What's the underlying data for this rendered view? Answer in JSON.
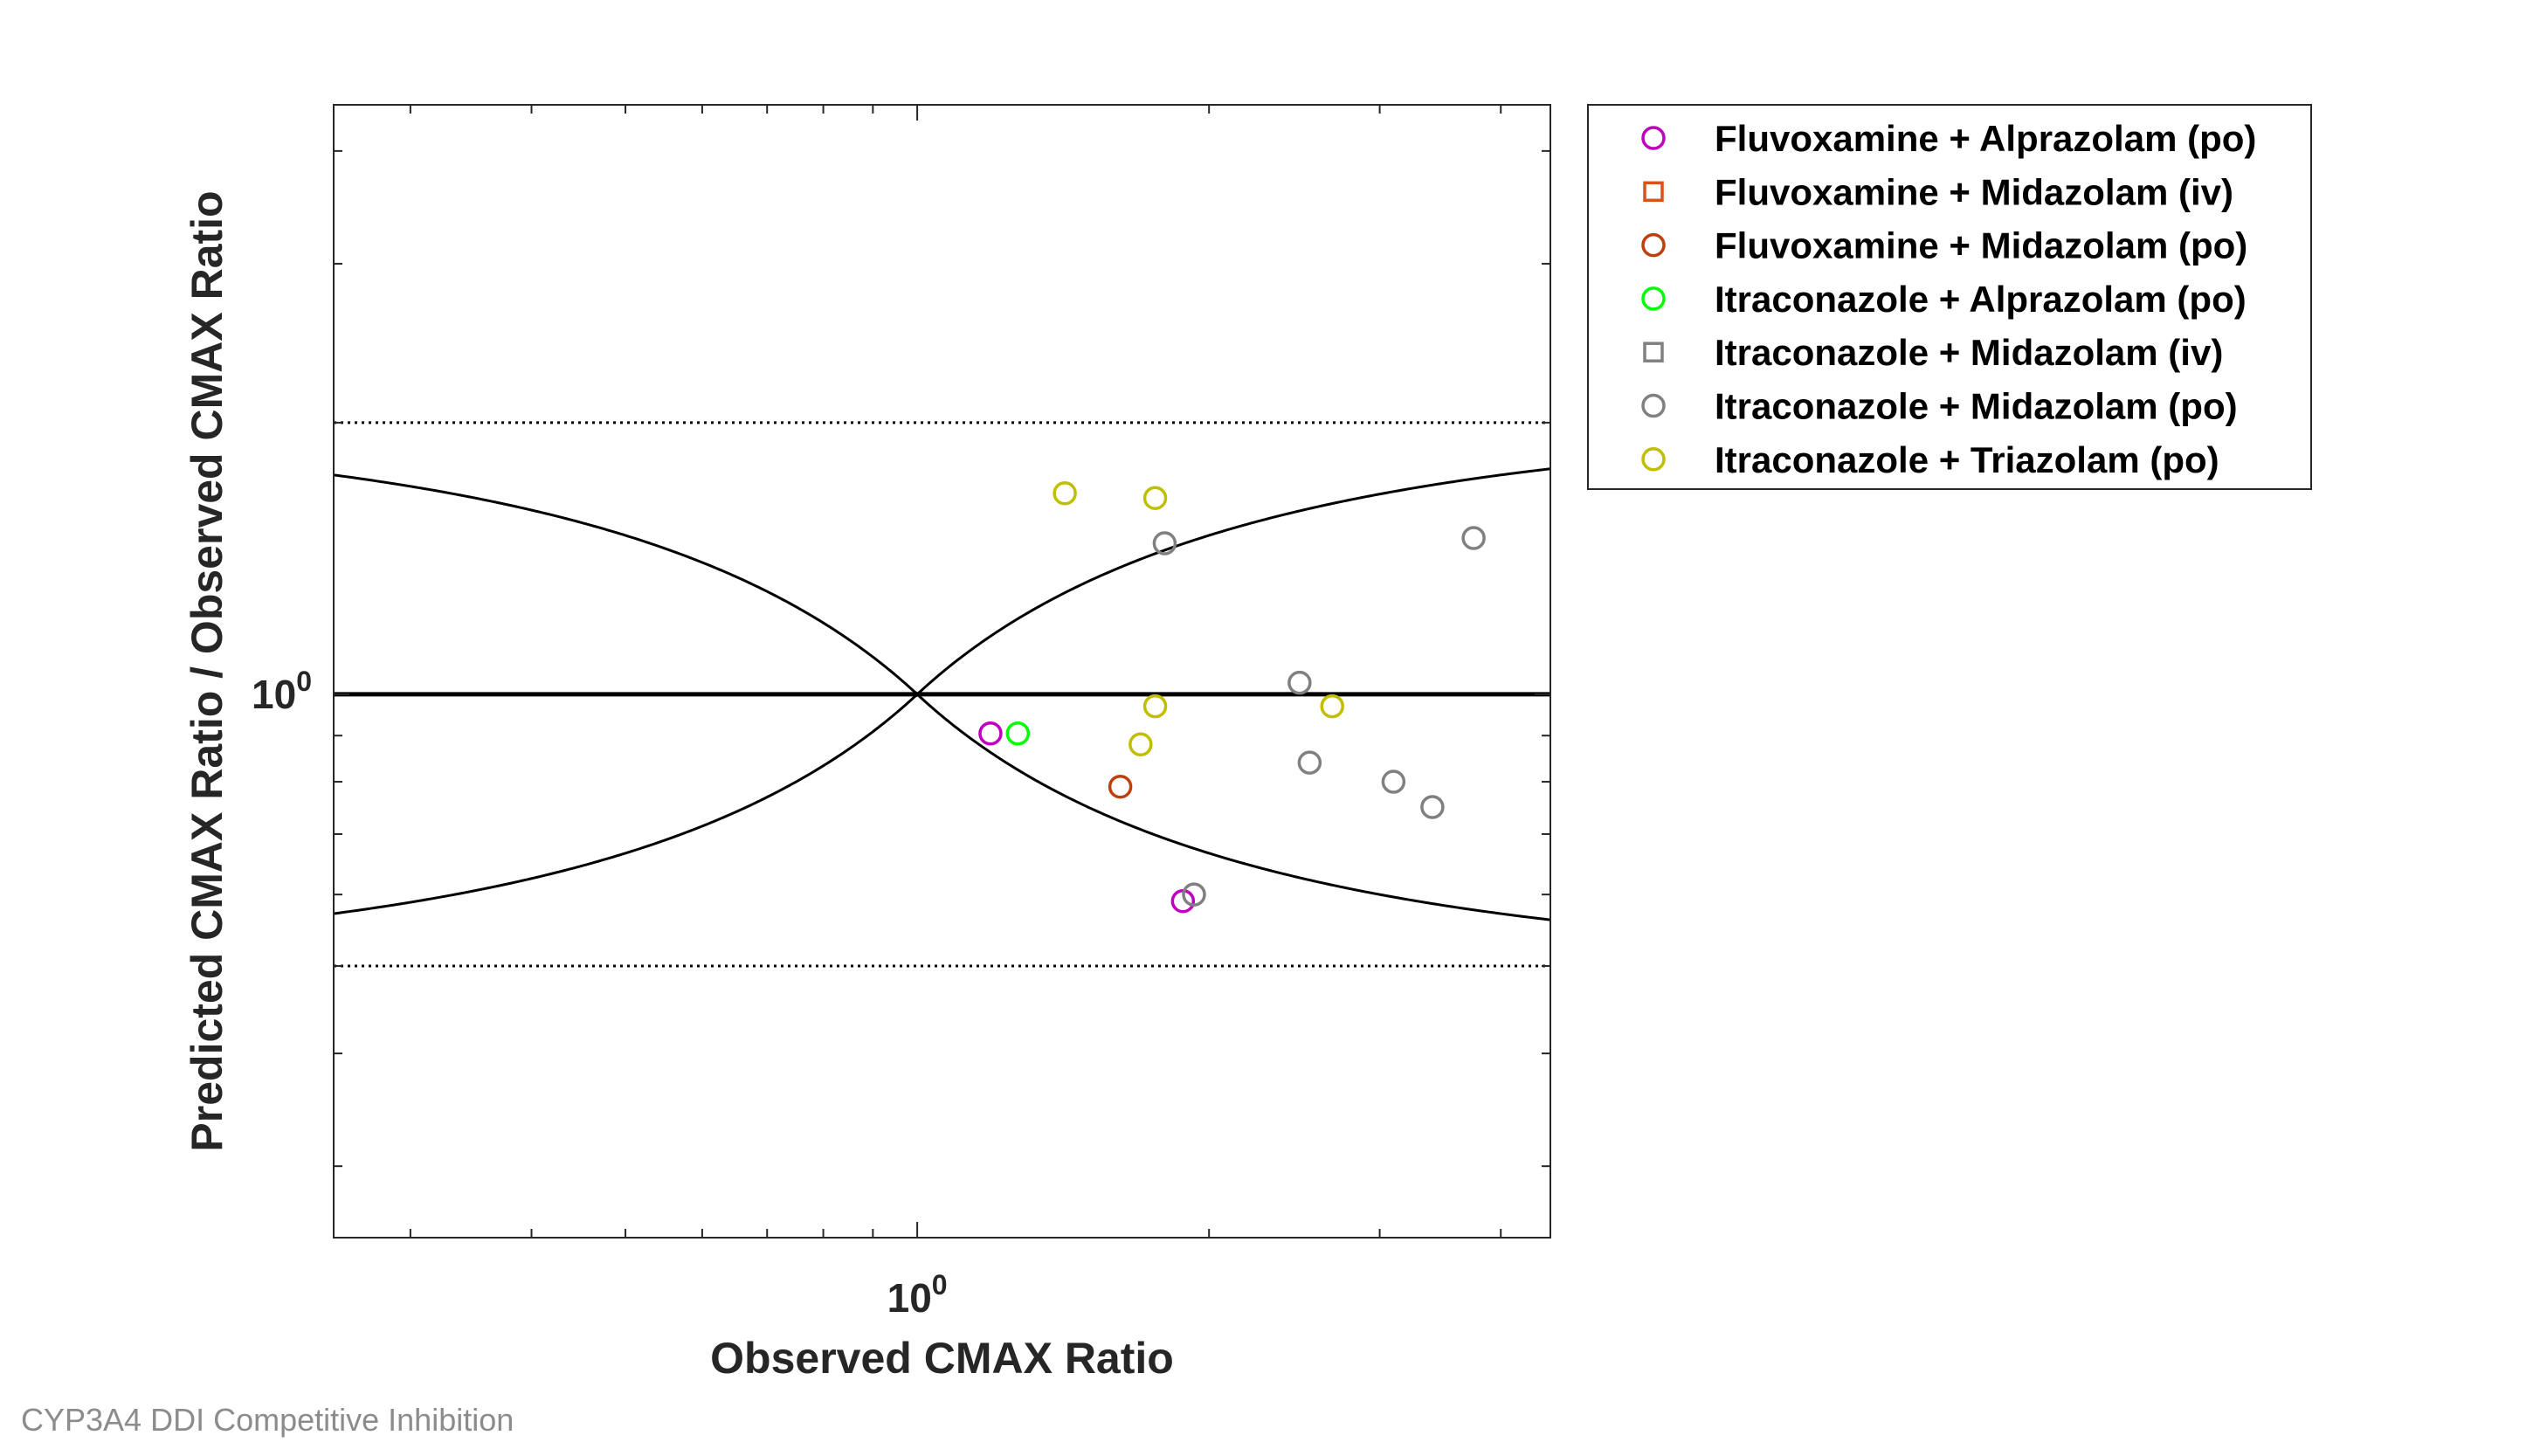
{
  "caption": "CYP3A4 DDI Competitive Inhibition",
  "chart_data": {
    "type": "scatter",
    "xscale": "log",
    "yscale": "log",
    "xlabel": "Observed CMAX Ratio",
    "ylabel": "Predicted CMAX Ratio / Observed CMAX Ratio",
    "x_tick_label": {
      "base": "10",
      "exp": "0"
    },
    "y_tick_label": {
      "base": "10",
      "exp": "0"
    },
    "xlim": [
      0.25,
      4.5
    ],
    "ylim": [
      0.25,
      4.5
    ],
    "grid": false,
    "legend_position": "outside-top-right",
    "reference_lines": {
      "identity": 1.0,
      "limits": [
        0.5,
        2.0
      ],
      "guest_curve_delta": 1
    },
    "series": [
      {
        "name": "Fluvoxamine + Alprazolam (po)",
        "marker": "circle",
        "color": "#bf00bf",
        "points": [
          [
            1.19,
            0.905
          ],
          [
            1.88,
            0.59
          ]
        ]
      },
      {
        "name": "Fluvoxamine + Midazolam (iv)",
        "marker": "square",
        "color": "#d95319",
        "points": []
      },
      {
        "name": "Fluvoxamine + Midazolam (po)",
        "marker": "circle",
        "color": "#c0400d",
        "points": [
          [
            1.62,
            0.79
          ]
        ]
      },
      {
        "name": "Itraconazole + Alprazolam (po)",
        "marker": "circle",
        "color": "#00ff00",
        "points": [
          [
            1.27,
            0.905
          ]
        ]
      },
      {
        "name": "Itraconazole + Midazolam (iv)",
        "marker": "square",
        "color": "#808080",
        "points": []
      },
      {
        "name": "Itraconazole + Midazolam (po)",
        "marker": "circle",
        "color": "#808080",
        "points": [
          [
            1.8,
            1.47
          ],
          [
            1.93,
            0.6
          ],
          [
            2.48,
            1.03
          ],
          [
            2.54,
            0.84
          ],
          [
            3.1,
            0.8
          ],
          [
            3.4,
            0.75
          ],
          [
            3.75,
            1.49
          ]
        ]
      },
      {
        "name": "Itraconazole + Triazolam (po)",
        "marker": "circle",
        "color": "#bfbf00",
        "points": [
          [
            1.42,
            1.67
          ],
          [
            1.76,
            1.65
          ],
          [
            1.7,
            0.88
          ],
          [
            1.76,
            0.97
          ],
          [
            2.68,
            0.97
          ]
        ]
      }
    ]
  }
}
